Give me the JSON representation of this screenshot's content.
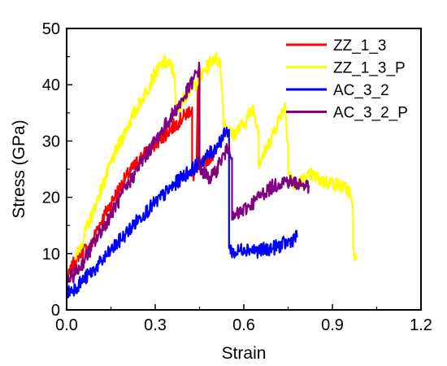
{
  "chart_data": {
    "type": "line",
    "title": "",
    "xlabel": "Strain",
    "ylabel": "Stress (GPa)",
    "xlim": [
      0,
      1.2
    ],
    "ylim": [
      0,
      50
    ],
    "x_ticks": [
      0.0,
      0.3,
      0.6,
      0.9,
      1.2
    ],
    "x_tick_labels": [
      "0.0",
      "0.3",
      "0.6",
      "0.9",
      "1.2"
    ],
    "y_ticks": [
      0,
      10,
      20,
      30,
      40,
      50
    ],
    "y_tick_labels": [
      "0",
      "10",
      "20",
      "30",
      "40",
      "50"
    ],
    "grid": false,
    "legend_position": "top-right",
    "series": [
      {
        "name": "ZZ_1_3",
        "color": "#ff0000",
        "x": [
          0.0,
          0.03,
          0.05,
          0.08,
          0.1,
          0.15,
          0.2,
          0.25,
          0.3,
          0.35,
          0.4,
          0.425,
          0.425,
          0.43,
          0.44,
          0.445,
          0.445,
          0.47,
          0.5
        ],
        "y": [
          5,
          9,
          10.5,
          11,
          14,
          19,
          23.5,
          27,
          29.5,
          32,
          34.5,
          36,
          25,
          23,
          26,
          42.5,
          25,
          26.5,
          28
        ]
      },
      {
        "name": "ZZ_1_3_P",
        "color": "#ffff00",
        "x": [
          0.03,
          0.1,
          0.15,
          0.2,
          0.25,
          0.3,
          0.33,
          0.35,
          0.365,
          0.37,
          0.4,
          0.45,
          0.48,
          0.5,
          0.52,
          0.53,
          0.53,
          0.56,
          0.6,
          0.63,
          0.65,
          0.65,
          0.68,
          0.72,
          0.74,
          0.75,
          0.75,
          0.77,
          0.8,
          0.83,
          0.86,
          0.9,
          0.93,
          0.96,
          0.97,
          0.97,
          0.98
        ],
        "y": [
          9,
          19,
          26,
          32,
          37,
          42,
          44,
          43.5,
          42,
          35,
          38,
          41,
          43.5,
          45,
          44,
          36,
          33.5,
          31,
          33,
          36,
          32,
          26,
          29,
          34,
          36.5,
          29,
          25,
          22,
          23,
          24,
          23,
          22.5,
          22,
          21,
          17,
          11,
          9
        ]
      },
      {
        "name": "AC_3_2",
        "color": "#0000ff",
        "x": [
          0.0,
          0.03,
          0.05,
          0.1,
          0.15,
          0.2,
          0.25,
          0.3,
          0.35,
          0.4,
          0.45,
          0.5,
          0.54,
          0.55,
          0.55,
          0.57,
          0.6,
          0.65,
          0.7,
          0.75,
          0.78
        ],
        "y": [
          3,
          4,
          5,
          7.5,
          10.5,
          13.5,
          16.5,
          19,
          21.5,
          24,
          26,
          28.5,
          31.5,
          32,
          11,
          10,
          11,
          10.5,
          11,
          12,
          13
        ]
      },
      {
        "name": "AC_3_2_P",
        "color": "#800080",
        "x": [
          0.0,
          0.03,
          0.05,
          0.1,
          0.15,
          0.2,
          0.25,
          0.3,
          0.35,
          0.4,
          0.43,
          0.45,
          0.45,
          0.48,
          0.5,
          0.52,
          0.54,
          0.55,
          0.56,
          0.56,
          0.58,
          0.62,
          0.66,
          0.7,
          0.74,
          0.78,
          0.82
        ],
        "y": [
          5,
          6.5,
          8,
          12.5,
          17,
          21.5,
          26,
          30,
          34,
          38,
          41,
          43,
          25,
          23.5,
          24,
          26.5,
          28,
          29.5,
          27,
          16,
          17,
          18.5,
          20.5,
          22,
          23,
          22.5,
          22
        ]
      }
    ]
  }
}
